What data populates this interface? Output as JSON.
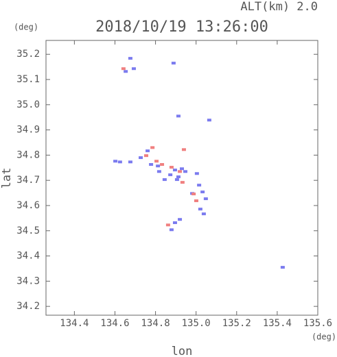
{
  "chart_data": {
    "type": "scatter",
    "title": "2018/10/19 13:26:00",
    "subtitle": "ALT(km) 2.0",
    "y_unit": "(deg)",
    "x_unit": "(deg)",
    "x_label": "lon",
    "y_label": "lat",
    "xlim": [
      134.26,
      135.6
    ],
    "ylim": [
      34.165,
      35.255
    ],
    "xticks": [
      134.4,
      134.6,
      134.8,
      {
        "value": 135,
        "label": "135.0"
      },
      135.2,
      135.4,
      135.6
    ],
    "yticks": [
      34.2,
      34.3,
      34.4,
      34.5,
      34.6,
      34.7,
      34.8,
      34.9,
      {
        "value": 35,
        "label": "35.0"
      },
      35.1,
      35.2
    ],
    "series": [
      {
        "color": "#7b7bef",
        "x": [
          134.676,
          134.693,
          134.653,
          134.889,
          134.913,
          135.065,
          134.602,
          134.625,
          134.676,
          134.727,
          134.761,
          134.778,
          134.818,
          134.845,
          134.896,
          134.93,
          134.947,
          134.906,
          135.004,
          135.015,
          134.981,
          135.032,
          135.048,
          135.021,
          135.038,
          134.896,
          134.879,
          134.92,
          135.427,
          134.913,
          134.812,
          134.873
        ],
        "values": [
          35.184,
          35.143,
          35.132,
          35.165,
          34.955,
          34.939,
          34.776,
          34.773,
          34.773,
          34.79,
          34.817,
          34.763,
          34.735,
          34.703,
          34.741,
          34.746,
          34.735,
          34.703,
          34.727,
          34.681,
          34.648,
          34.654,
          34.627,
          34.586,
          34.567,
          34.532,
          34.504,
          34.545,
          34.355,
          34.714,
          34.757,
          34.722
        ]
      },
      {
        "color": "#f08080",
        "x": [
          134.642,
          134.785,
          134.754,
          134.94,
          134.832,
          134.879,
          134.92,
          134.933,
          135.001,
          134.862,
          134.805,
          134.988
        ],
        "values": [
          35.143,
          34.83,
          34.798,
          34.822,
          34.763,
          34.752,
          34.735,
          34.692,
          34.619,
          34.523,
          34.776,
          34.646
        ]
      }
    ]
  }
}
